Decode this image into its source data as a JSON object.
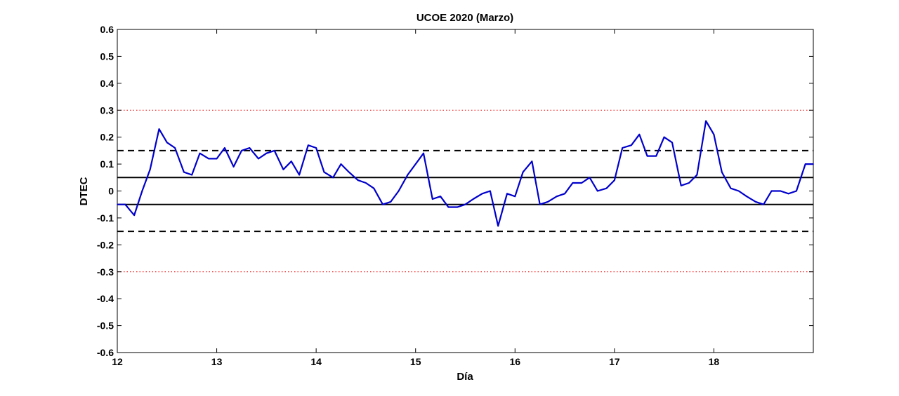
{
  "chart_data": {
    "type": "line",
    "title": "UCOE 2020 (Marzo)",
    "xlabel": "Día",
    "ylabel": "DTEC",
    "xlim": [
      12,
      19
    ],
    "ylim": [
      -0.6,
      0.6
    ],
    "xticks": [
      "12",
      "13",
      "14",
      "15",
      "16",
      "17",
      "18"
    ],
    "yticks": [
      "0.6",
      "0.5",
      "0.4",
      "0.3",
      "0.2",
      "0.1",
      "0",
      "-0.1",
      "-0.2",
      "-0.3",
      "-0.4",
      "-0.5",
      "-0.6"
    ],
    "grid": false,
    "colors": {
      "series": "#0000cc",
      "solid_ref": "#000000",
      "dashed_ref": "#000000",
      "dotted_ref": "#ff0000"
    },
    "reference_lines": [
      {
        "y": 0.05,
        "style": "solid"
      },
      {
        "y": -0.05,
        "style": "solid"
      },
      {
        "y": 0.15,
        "style": "dashed"
      },
      {
        "y": -0.15,
        "style": "dashed"
      },
      {
        "y": 0.3,
        "style": "dotted"
      },
      {
        "y": -0.3,
        "style": "dotted"
      }
    ],
    "series": [
      {
        "x": [
          12.0,
          12.08,
          12.17,
          12.25,
          12.33,
          12.42,
          12.5,
          12.58,
          12.67,
          12.75,
          12.83,
          12.92,
          13.0,
          13.08,
          13.17,
          13.25,
          13.33,
          13.42,
          13.5,
          13.58,
          13.67,
          13.75,
          13.83,
          13.92,
          14.0,
          14.08,
          14.17,
          14.25,
          14.33,
          14.42,
          14.5,
          14.58,
          14.67,
          14.75,
          14.83,
          14.92,
          15.0,
          15.08,
          15.17,
          15.25,
          15.33,
          15.42,
          15.5,
          15.58,
          15.67,
          15.75,
          15.83,
          15.92,
          16.0,
          16.08,
          16.17,
          16.25,
          16.33,
          16.42,
          16.5,
          16.58,
          16.67,
          16.75,
          16.83,
          16.92,
          17.0,
          17.08,
          17.17,
          17.25,
          17.33,
          17.42,
          17.5,
          17.58,
          17.67,
          17.75,
          17.83,
          17.92,
          18.0,
          18.08,
          18.17,
          18.25,
          18.33,
          18.42,
          18.5,
          18.58,
          18.67,
          18.75,
          18.83,
          18.92,
          19.0
        ],
        "y": [
          -0.05,
          -0.05,
          -0.09,
          0.0,
          0.08,
          0.23,
          0.18,
          0.16,
          0.07,
          0.06,
          0.14,
          0.12,
          0.12,
          0.16,
          0.09,
          0.15,
          0.16,
          0.12,
          0.14,
          0.15,
          0.08,
          0.11,
          0.06,
          0.17,
          0.16,
          0.07,
          0.05,
          0.1,
          0.07,
          0.04,
          0.03,
          0.01,
          -0.05,
          -0.04,
          0.0,
          0.06,
          0.1,
          0.14,
          -0.03,
          -0.02,
          -0.06,
          -0.06,
          -0.05,
          -0.03,
          -0.01,
          0.0,
          -0.13,
          -0.01,
          -0.02,
          0.07,
          0.11,
          -0.05,
          -0.04,
          -0.02,
          -0.01,
          0.03,
          0.03,
          0.05,
          0.0,
          0.01,
          0.04,
          0.16,
          0.17,
          0.21,
          0.13,
          0.13,
          0.2,
          0.18,
          0.02,
          0.03,
          0.06,
          0.26,
          0.21,
          0.07,
          0.01,
          0.0,
          -0.02,
          -0.04,
          -0.05,
          0.0,
          0.0,
          -0.01,
          0.0,
          0.1,
          0.1
        ]
      }
    ]
  }
}
